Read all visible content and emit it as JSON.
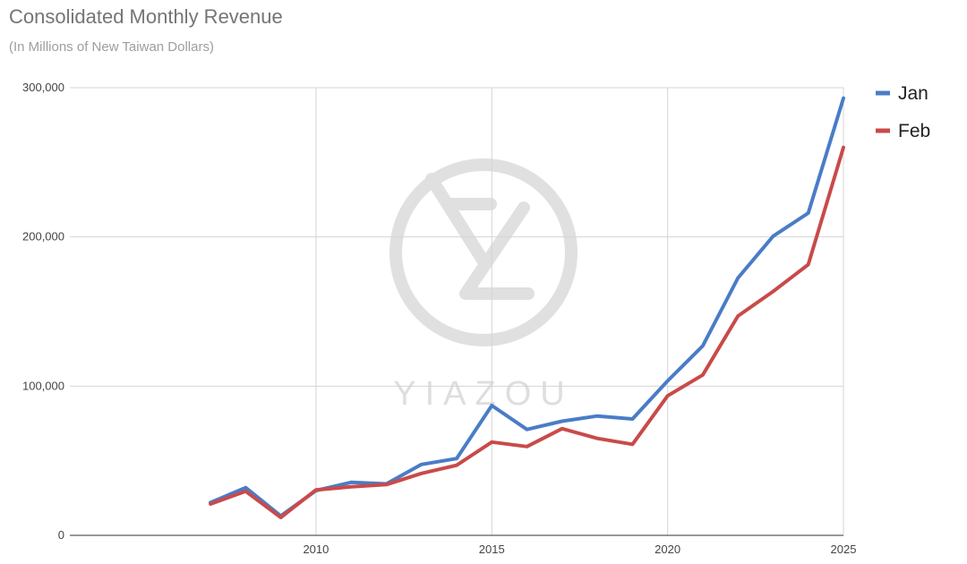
{
  "header": {
    "title": "Consolidated Monthly Revenue",
    "subtitle": "(In Millions of New Taiwan Dollars)"
  },
  "watermark": {
    "text": "YIAZOU"
  },
  "chart_data": {
    "type": "line",
    "title": "Consolidated Monthly Revenue",
    "subtitle": "(In Millions of New Taiwan Dollars)",
    "xlabel": "",
    "ylabel": "",
    "x": [
      2007,
      2008,
      2009,
      2010,
      2011,
      2012,
      2013,
      2014,
      2015,
      2016,
      2017,
      2018,
      2019,
      2020,
      2021,
      2022,
      2023,
      2024,
      2025
    ],
    "xlim": [
      2003,
      2025
    ],
    "ylim": [
      0,
      300000
    ],
    "x_ticks": [
      2010,
      2015,
      2020,
      2025
    ],
    "y_ticks": [
      0,
      100000,
      200000,
      300000
    ],
    "x_tick_labels": [
      "2010",
      "2015",
      "2020",
      "2025"
    ],
    "y_tick_labels": [
      "0",
      "100,000",
      "200,000",
      "300,000"
    ],
    "grid": true,
    "legend_position": "right-top",
    "series": [
      {
        "name": "Jan",
        "color": "#4a7cc7",
        "values": [
          22000,
          32000,
          13000,
          30000,
          35500,
          34500,
          47500,
          51500,
          87000,
          71000,
          76500,
          80000,
          78000,
          103500,
          127000,
          172500,
          200500,
          216000,
          293000
        ]
      },
      {
        "name": "Feb",
        "color": "#c94a4a",
        "values": [
          21000,
          29500,
          12000,
          30500,
          32500,
          34000,
          41500,
          47000,
          62500,
          59500,
          71500,
          65000,
          61000,
          93500,
          107500,
          147000,
          163500,
          181500,
          260000
        ]
      }
    ]
  }
}
